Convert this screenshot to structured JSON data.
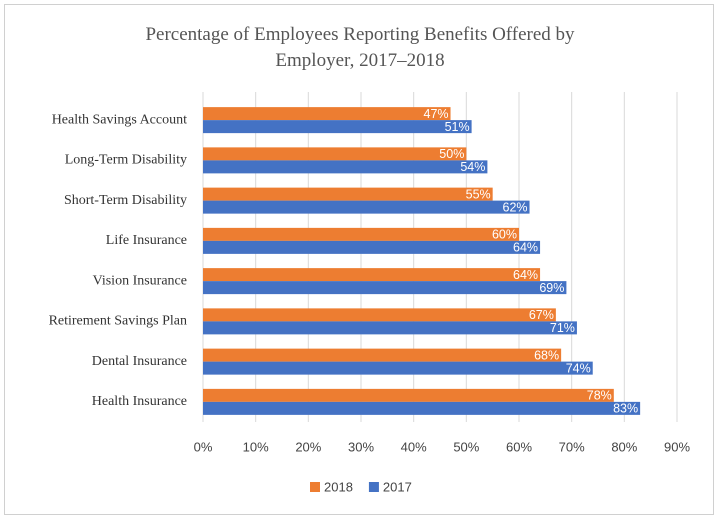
{
  "chart_data": {
    "type": "bar",
    "orientation": "horizontal",
    "title": "Percentage of Employees Reporting Benefits Offered by Employer, 2017–2018",
    "categories": [
      "Health Savings Account",
      "Long-Term Disability",
      "Short-Term Disability",
      "Life Insurance",
      "Vision Insurance",
      "Retirement Savings Plan",
      "Dental Insurance",
      "Health Insurance"
    ],
    "series": [
      {
        "name": "2018",
        "color": "#ed7d31",
        "values": [
          47,
          50,
          55,
          60,
          64,
          67,
          68,
          78
        ],
        "value_labels": [
          "47%",
          "50%",
          "55%",
          "60%",
          "64%",
          "67%",
          "68%",
          "78%"
        ]
      },
      {
        "name": "2017",
        "color": "#4472c4",
        "values": [
          51,
          54,
          62,
          64,
          69,
          71,
          74,
          83
        ],
        "value_labels": [
          "51%",
          "54%",
          "62%",
          "64%",
          "69%",
          "71%",
          "74%",
          "83%"
        ]
      }
    ],
    "xlim": [
      0,
      90
    ],
    "xticks": [
      {
        "value": 0,
        "label": "0%"
      },
      {
        "value": 10,
        "label": "10%"
      },
      {
        "value": 20,
        "label": "20%"
      },
      {
        "value": 30,
        "label": "30%"
      },
      {
        "value": 40,
        "label": "40%"
      },
      {
        "value": 50,
        "label": "50%"
      },
      {
        "value": 60,
        "label": "60%"
      },
      {
        "value": 70,
        "label": "70%"
      },
      {
        "value": 80,
        "label": "80%"
      },
      {
        "value": 90,
        "label": "90%"
      }
    ],
    "grid": true,
    "legend": "bottom"
  }
}
